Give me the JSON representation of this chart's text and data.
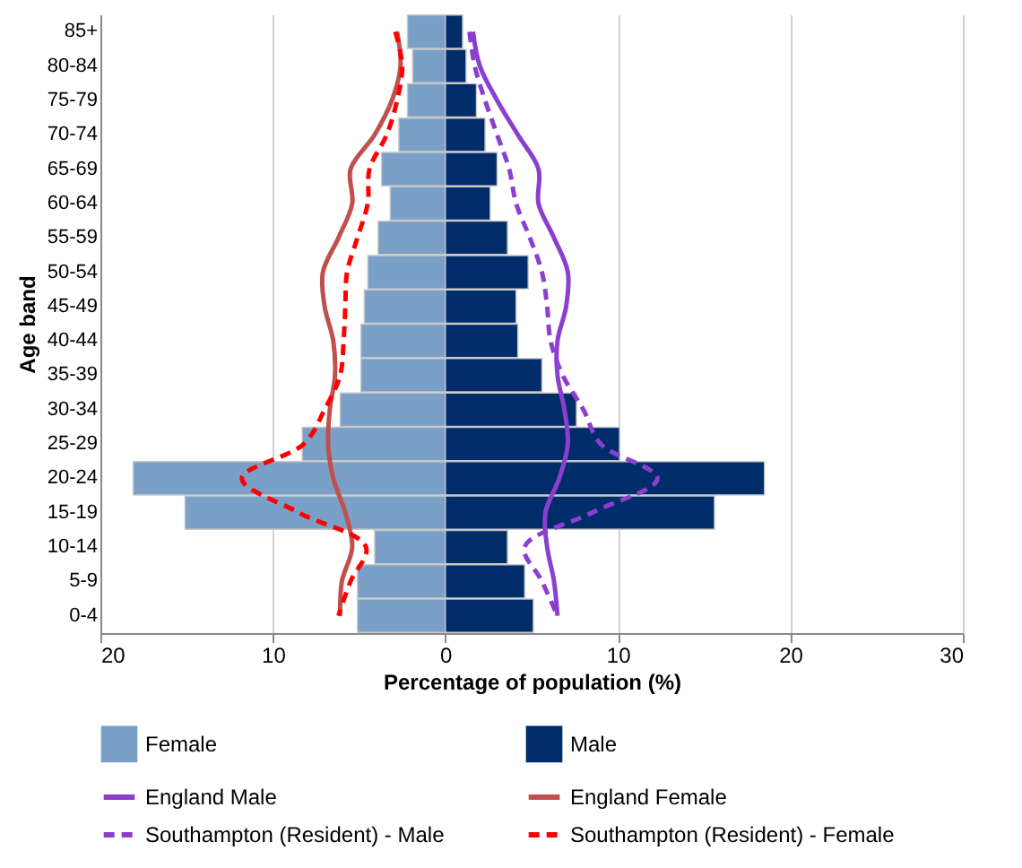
{
  "chart_data": {
    "type": "bar",
    "orientation": "horizontal",
    "xlabel": "Percentage of population (%)",
    "ylabel": "Age band",
    "categories": [
      "85+",
      "80-84",
      "75-79",
      "70-74",
      "65-69",
      "60-64",
      "55-59",
      "50-54",
      "45-49",
      "40-44",
      "35-39",
      "30-34",
      "25-29",
      "20-24",
      "15-19",
      "10-14",
      "5-9",
      "0-4"
    ],
    "xlim": [
      -20,
      30
    ],
    "xticks": [
      {
        "value": -20,
        "label": "20"
      },
      {
        "value": -10,
        "label": "10"
      },
      0,
      10,
      20,
      30
    ],
    "grid": "x",
    "legend": "bottom",
    "stacked": true,
    "series": [
      {
        "name": "Female",
        "color": "#7ba0c8",
        "values": [
          -2.2,
          -1.9,
          -2.2,
          -2.7,
          -3.7,
          -3.2,
          -3.9,
          -4.5,
          -4.7,
          -4.9,
          -4.9,
          -6.1,
          -8.3,
          -18.1,
          -15.1,
          -4.1,
          -5.1,
          -5.1
        ]
      },
      {
        "name": "Male",
        "color": "#002d6a",
        "values": [
          1.0,
          1.2,
          1.8,
          2.3,
          3.0,
          2.6,
          3.6,
          4.8,
          4.1,
          4.2,
          5.6,
          7.6,
          10.1,
          18.5,
          15.6,
          3.6,
          4.6,
          5.1
        ]
      },
      {
        "name": "England Male",
        "type": "line",
        "line_style": "solid",
        "color": "#8b3fcf",
        "values": [
          1.6,
          2.0,
          3.0,
          4.2,
          5.4,
          5.4,
          6.3,
          7.1,
          7.0,
          6.5,
          6.5,
          6.9,
          7.1,
          6.6,
          5.8,
          5.9,
          6.3,
          6.5
        ]
      },
      {
        "name": "England Female",
        "type": "line",
        "line_style": "solid",
        "color": "#c0504d",
        "values": [
          -2.8,
          -2.6,
          -3.1,
          -4.1,
          -5.5,
          -5.4,
          -6.2,
          -7.1,
          -7.0,
          -6.5,
          -6.4,
          -6.7,
          -6.8,
          -6.5,
          -5.8,
          -5.4,
          -6.0,
          -6.1
        ]
      },
      {
        "name": "Southampton (Resident) - Male",
        "type": "line",
        "line_style": "dashed",
        "color": "#8b3fcf",
        "values": [
          1.4,
          1.7,
          2.3,
          3.0,
          3.7,
          4.1,
          4.9,
          5.6,
          5.9,
          6.1,
          6.8,
          8.0,
          9.0,
          12.3,
          8.5,
          4.6,
          5.6,
          6.5
        ]
      },
      {
        "name": "Southampton (Resident) - Female",
        "type": "line",
        "line_style": "dashed",
        "color": "#ff0000",
        "values": [
          -2.9,
          -2.5,
          -2.8,
          -3.4,
          -4.4,
          -4.5,
          -5.1,
          -5.7,
          -5.8,
          -5.9,
          -6.1,
          -7.0,
          -8.2,
          -11.8,
          -8.5,
          -4.6,
          -5.5,
          -6.2
        ]
      }
    ]
  }
}
